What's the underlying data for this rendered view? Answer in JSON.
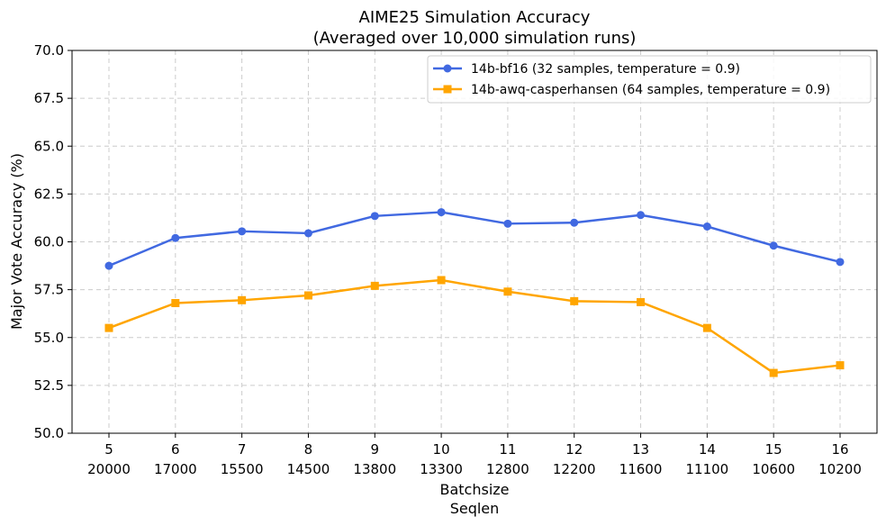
{
  "chart_data": {
    "type": "line",
    "title": "AIME25 Simulation Accuracy",
    "subtitle": "(Averaged over 10,000 simulation runs)",
    "xlabel": "Batchsize",
    "xlabel2": "Seqlen",
    "ylabel": "Major Vote Accuracy (%)",
    "ylim": [
      50,
      70
    ],
    "yticks": [
      "50.0",
      "52.5",
      "55.0",
      "57.5",
      "60.0",
      "62.5",
      "65.0",
      "67.5",
      "70.0"
    ],
    "categories": [
      "5",
      "6",
      "7",
      "8",
      "9",
      "10",
      "11",
      "12",
      "13",
      "14",
      "15",
      "16"
    ],
    "categories2": [
      "20000",
      "17000",
      "15500",
      "14500",
      "13800",
      "13300",
      "12800",
      "12200",
      "11600",
      "11100",
      "10600",
      "10200"
    ],
    "grid": true,
    "legend_position": "top-right",
    "series": [
      {
        "name": "14b-bf16 (32 samples, temperature = 0.9)",
        "color": "#4169E1",
        "marker": "circle",
        "values": [
          58.75,
          60.2,
          60.55,
          60.45,
          61.35,
          61.55,
          60.95,
          61.0,
          61.4,
          60.8,
          59.8,
          58.95
        ]
      },
      {
        "name": "14b-awq-casperhansen (64 samples, temperature = 0.9)",
        "color": "#FFA500",
        "marker": "square",
        "values": [
          55.5,
          56.8,
          56.95,
          57.2,
          57.7,
          58.0,
          57.4,
          56.9,
          56.85,
          55.5,
          53.15,
          53.55
        ]
      }
    ]
  }
}
